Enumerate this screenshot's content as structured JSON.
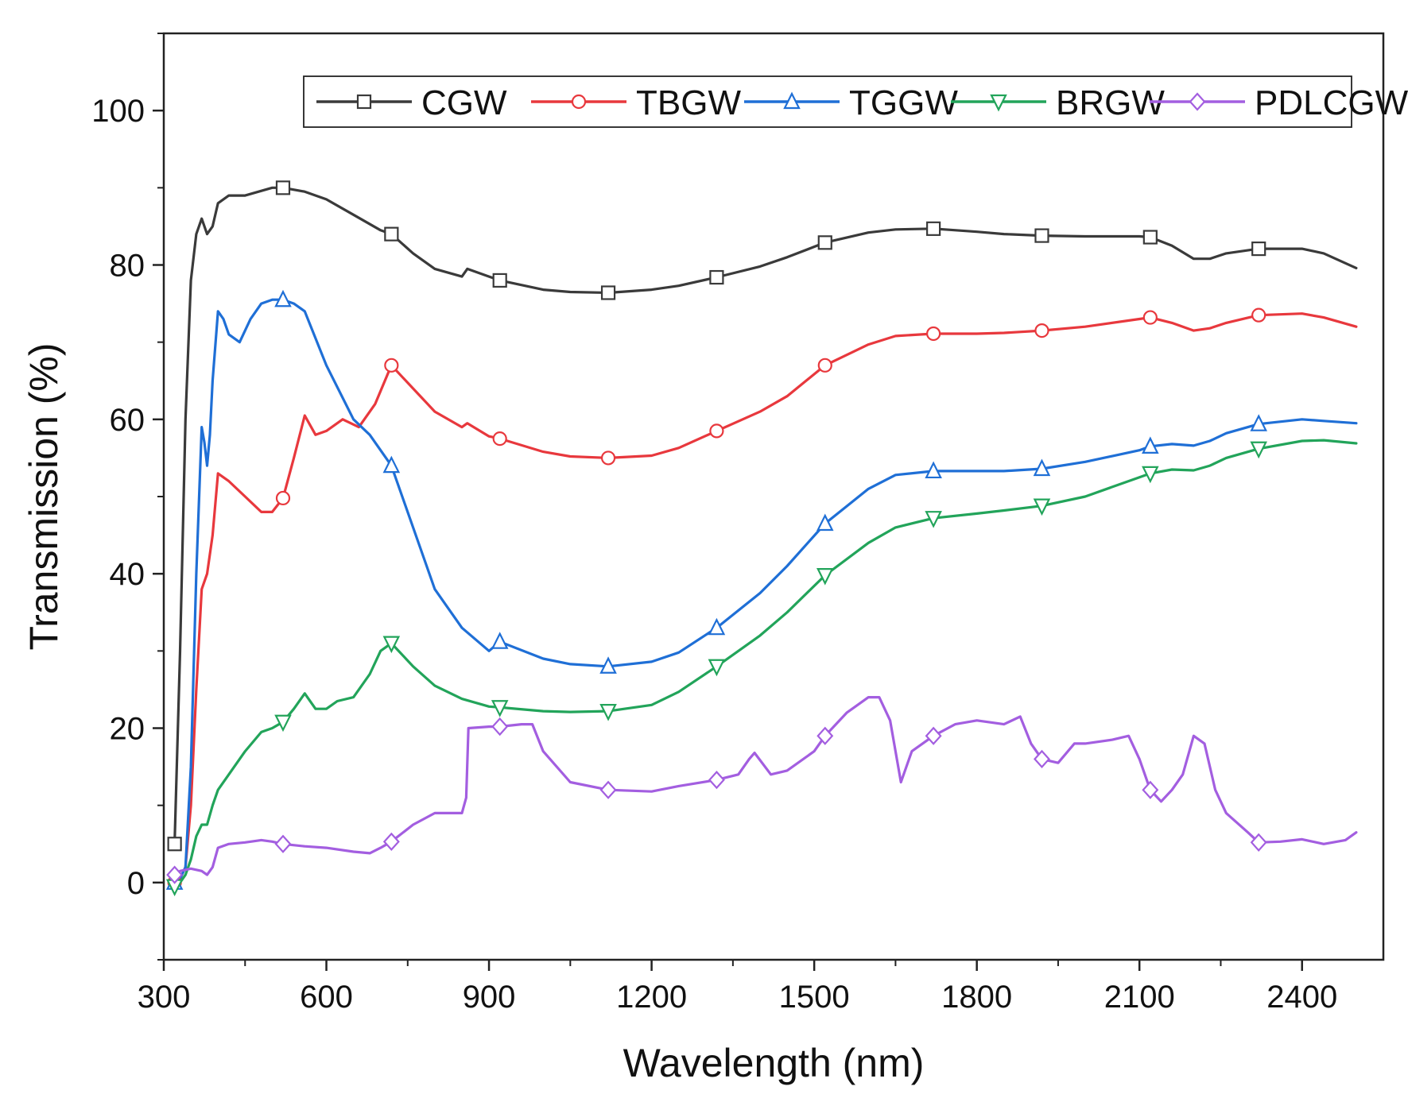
{
  "chart_data": {
    "type": "line",
    "title": "",
    "xlabel": "Wavelength (nm)",
    "ylabel": "Transmission (%)",
    "xlim": [
      300,
      2550
    ],
    "ylim": [
      -10,
      110
    ],
    "xticks": [
      300,
      600,
      900,
      1200,
      1500,
      1800,
      2100,
      2400
    ],
    "yticks": [
      0,
      20,
      40,
      60,
      80,
      100
    ],
    "legend_position": "top-right",
    "colors": {
      "CGW": "#3a3a3a",
      "TBGW": "#e8383d",
      "TGGW": "#1f6fd6",
      "BRGW": "#22a45a",
      "PDLCGW": "#a35ee0"
    },
    "series": [
      {
        "name": "CGW",
        "marker": "square",
        "x": [
          320,
          330,
          340,
          350,
          360,
          370,
          380,
          390,
          400,
          420,
          450,
          500,
          520,
          560,
          600,
          650,
          700,
          720,
          760,
          800,
          850,
          860,
          900,
          920,
          1000,
          1050,
          1120,
          1200,
          1250,
          1320,
          1400,
          1450,
          1520,
          1600,
          1650,
          1720,
          1800,
          1850,
          1920,
          2000,
          2100,
          2120,
          2160,
          2200,
          2230,
          2260,
          2320,
          2400,
          2440,
          2500
        ],
        "y": [
          5,
          30,
          60,
          78,
          84,
          86,
          84,
          85,
          88,
          89,
          89,
          90,
          90,
          89.5,
          88.5,
          86.5,
          84.5,
          84,
          81.5,
          79.5,
          78.5,
          79.5,
          78.5,
          78,
          76.8,
          76.5,
          76.4,
          76.8,
          77.3,
          78.4,
          79.8,
          81,
          82.9,
          84.2,
          84.6,
          84.7,
          84.3,
          84,
          83.8,
          83.7,
          83.7,
          83.6,
          82.5,
          80.8,
          80.8,
          81.5,
          82.1,
          82.1,
          81.5,
          79.6
        ]
      },
      {
        "name": "TBGW",
        "marker": "circle",
        "x": [
          320,
          330,
          340,
          350,
          360,
          370,
          380,
          390,
          400,
          420,
          450,
          480,
          500,
          520,
          540,
          560,
          580,
          600,
          630,
          660,
          690,
          720,
          760,
          800,
          850,
          860,
          900,
          920,
          1000,
          1050,
          1120,
          1200,
          1250,
          1320,
          1400,
          1450,
          1520,
          1600,
          1650,
          1720,
          1800,
          1850,
          1920,
          2000,
          2100,
          2120,
          2160,
          2200,
          2230,
          2260,
          2320,
          2400,
          2440,
          2500
        ],
        "y": [
          0,
          0.5,
          2,
          10,
          25,
          38,
          40,
          45,
          53,
          52,
          50,
          48,
          48,
          49.8,
          55,
          60.5,
          58,
          58.5,
          60,
          59,
          62,
          67,
          64,
          61,
          59,
          59.5,
          57.8,
          57.5,
          55.8,
          55.2,
          55,
          55.3,
          56.3,
          58.5,
          61,
          63,
          67,
          69.7,
          70.8,
          71.1,
          71.1,
          71.2,
          71.5,
          72,
          73,
          73.2,
          72.5,
          71.5,
          71.8,
          72.5,
          73.5,
          73.7,
          73.2,
          72
        ]
      },
      {
        "name": "TGGW",
        "marker": "triangle-up",
        "x": [
          320,
          330,
          340,
          350,
          360,
          370,
          375,
          380,
          385,
          390,
          400,
          410,
          420,
          440,
          460,
          480,
          500,
          520,
          540,
          560,
          600,
          650,
          680,
          720,
          760,
          800,
          850,
          900,
          920,
          1000,
          1050,
          1120,
          1200,
          1250,
          1320,
          1400,
          1450,
          1520,
          1600,
          1650,
          1720,
          1800,
          1850,
          1920,
          2000,
          2100,
          2120,
          2160,
          2200,
          2230,
          2260,
          2320,
          2400,
          2440,
          2500
        ],
        "y": [
          0,
          0.5,
          2,
          15,
          40,
          59,
          57,
          54,
          58,
          65,
          74,
          73,
          71,
          70,
          73,
          75,
          75.5,
          75.5,
          75,
          74,
          67,
          60,
          58,
          54,
          46,
          38,
          33,
          30,
          31.2,
          29,
          28.3,
          28,
          28.6,
          29.8,
          33,
          37.5,
          41,
          46.5,
          51,
          52.8,
          53.3,
          53.3,
          53.3,
          53.6,
          54.5,
          56,
          56.5,
          56.8,
          56.6,
          57.2,
          58.2,
          59.4,
          60,
          59.8,
          59.5
        ]
      },
      {
        "name": "BRGW",
        "marker": "triangle-down",
        "x": [
          320,
          330,
          340,
          350,
          360,
          370,
          380,
          390,
          400,
          420,
          450,
          480,
          500,
          520,
          540,
          560,
          580,
          600,
          620,
          650,
          680,
          700,
          720,
          760,
          800,
          850,
          900,
          920,
          1000,
          1050,
          1120,
          1200,
          1250,
          1320,
          1400,
          1450,
          1520,
          1600,
          1650,
          1720,
          1800,
          1850,
          1920,
          2000,
          2100,
          2120,
          2160,
          2200,
          2230,
          2260,
          2320,
          2400,
          2440,
          2500
        ],
        "y": [
          -0.5,
          0,
          1,
          3,
          6,
          7.5,
          7.5,
          10,
          12,
          14,
          17,
          19.5,
          20,
          20.8,
          22.5,
          24.5,
          22.5,
          22.5,
          23.5,
          24,
          27,
          30,
          31,
          28,
          25.5,
          23.8,
          22.8,
          22.7,
          22.2,
          22.1,
          22.2,
          23,
          24.7,
          28,
          32,
          35,
          39.8,
          44,
          46,
          47.2,
          47.8,
          48.2,
          48.8,
          50,
          52.5,
          53,
          53.5,
          53.4,
          54,
          55,
          56.2,
          57.2,
          57.3,
          56.9
        ]
      },
      {
        "name": "PDLCGW",
        "marker": "diamond",
        "x": [
          320,
          330,
          350,
          370,
          380,
          390,
          400,
          420,
          450,
          480,
          500,
          520,
          560,
          600,
          650,
          680,
          700,
          720,
          760,
          800,
          850,
          858,
          862,
          900,
          920,
          960,
          980,
          1000,
          1050,
          1120,
          1200,
          1250,
          1320,
          1360,
          1380,
          1390,
          1420,
          1450,
          1500,
          1520,
          1560,
          1600,
          1620,
          1640,
          1660,
          1680,
          1720,
          1760,
          1800,
          1850,
          1880,
          1900,
          1920,
          1950,
          1980,
          2000,
          2050,
          2080,
          2100,
          2120,
          2140,
          2160,
          2180,
          2200,
          2220,
          2240,
          2260,
          2300,
          2320,
          2360,
          2400,
          2440,
          2480,
          2500
        ],
        "y": [
          1,
          1.5,
          1.8,
          1.5,
          1,
          2,
          4.5,
          5,
          5.2,
          5.5,
          5.3,
          5,
          4.7,
          4.5,
          4,
          3.8,
          4.5,
          5.3,
          7.5,
          9,
          9,
          11,
          20,
          20.2,
          20.2,
          20.5,
          20.5,
          17,
          13,
          12,
          11.8,
          12.5,
          13.3,
          14,
          16,
          16.8,
          14,
          14.5,
          17,
          19,
          22,
          24,
          24,
          21,
          13,
          17,
          19,
          20.5,
          21,
          20.5,
          21.5,
          18,
          16,
          15.5,
          18,
          18,
          18.5,
          19,
          16,
          12,
          10.5,
          12,
          14,
          19,
          18,
          12,
          9,
          6.5,
          5.2,
          5.3,
          5.6,
          5,
          5.5,
          6.5
        ]
      }
    ],
    "markers": [
      {
        "series": "CGW",
        "x": [
          320,
          520,
          720,
          920,
          1120,
          1320,
          1520,
          1720,
          1920,
          2120,
          2320
        ]
      },
      {
        "series": "TBGW",
        "x": [
          320,
          520,
          720,
          920,
          1120,
          1320,
          1520,
          1720,
          1920,
          2120,
          2320
        ]
      },
      {
        "series": "TGGW",
        "x": [
          320,
          520,
          720,
          920,
          1120,
          1320,
          1520,
          1720,
          1920,
          2120,
          2320
        ]
      },
      {
        "series": "BRGW",
        "x": [
          320,
          520,
          720,
          920,
          1120,
          1320,
          1520,
          1720,
          1920,
          2120,
          2320
        ]
      },
      {
        "series": "PDLCGW",
        "x": [
          320,
          520,
          720,
          920,
          1120,
          1320,
          1520,
          1720,
          1920,
          2120,
          2320
        ]
      }
    ]
  }
}
